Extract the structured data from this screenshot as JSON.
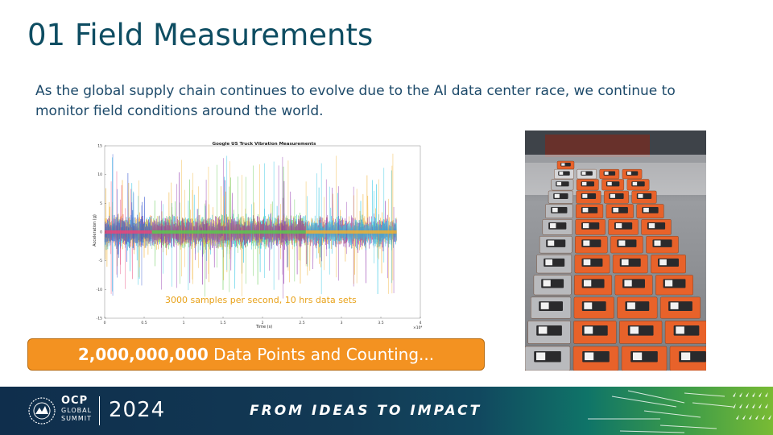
{
  "slide": {
    "title": "01 Field Measurements",
    "body_text": "As the global supply chain continues to evolve due to the AI data center race, we continue to monitor field conditions around the world.",
    "annotation": "3000 samples per second, 10 hrs data sets",
    "banner": {
      "bold": "2,000,000,000",
      "rest": " Data Points and Counting..."
    }
  },
  "chart_data": {
    "type": "line",
    "title": "Google US Truck Vibration Measurements",
    "xlabel": "Time (s)",
    "ylabel": "Acceleration (g)",
    "x_multiplier": "×10⁴",
    "xlim": [
      0,
      4
    ],
    "ylim": [
      -15,
      15
    ],
    "x_ticks": [
      "0",
      "0.5",
      "1",
      "1.5",
      "2",
      "2.5",
      "3",
      "3.5",
      "4"
    ],
    "y_ticks": [
      "-15",
      "-10",
      "-5",
      "0",
      "5",
      "10",
      "15"
    ],
    "series_colors": [
      "#e8457a",
      "#1ec0e0",
      "#f0b030",
      "#2d4fd0",
      "#5cc84c",
      "#8a2aa8"
    ],
    "segments": [
      {
        "x_start": 0.0,
        "x_end": 0.6,
        "colors": [
          "#e8457a",
          "#1ec0e0",
          "#f0b030",
          "#2d4fd0"
        ]
      },
      {
        "x_start": 0.6,
        "x_end": 2.55,
        "colors": [
          "#5cc84c",
          "#1ec0e0",
          "#f0b030",
          "#8a2aa8"
        ]
      },
      {
        "x_start": 2.55,
        "x_end": 3.7,
        "colors": [
          "#f0b030",
          "#8a2aa8",
          "#1ec0e0"
        ]
      }
    ]
  },
  "footer": {
    "brand_l1": "OCP",
    "brand_l2": "GLOBAL",
    "brand_l3": "SUMMIT",
    "year": "2024",
    "tagline": "FROM IDEAS TO IMPACT",
    "colors": {
      "navy": "#0f2e4c",
      "teal": "#0f7468",
      "green": "#79bb34"
    }
  },
  "photo": {
    "subject": "sensor-devices-grid"
  }
}
